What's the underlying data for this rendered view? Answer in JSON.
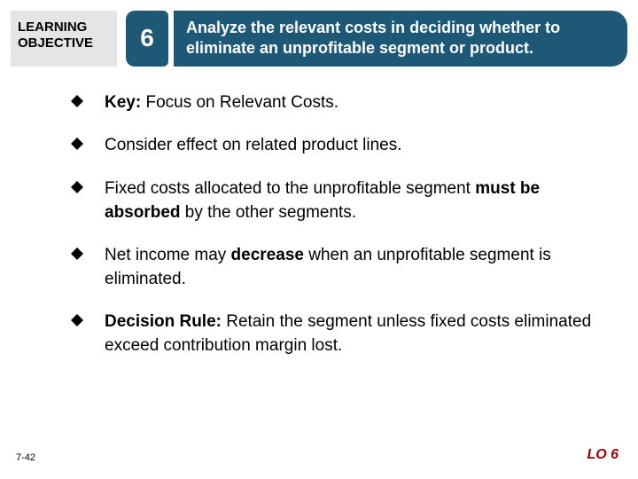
{
  "header": {
    "label_line1": "LEARNING",
    "label_line2": "OBJECTIVE",
    "number": "6",
    "objective": "Analyze the relevant costs in deciding whether to eliminate an unprofitable segment or product."
  },
  "bullets": [
    {
      "lead": "Key:",
      "lead_bold": true,
      "text": "  Focus on Relevant Costs."
    },
    {
      "lead": "",
      "lead_bold": false,
      "text": "Consider effect on related product lines."
    },
    {
      "lead": "",
      "lead_bold": false,
      "text": "Fixed costs allocated to the unprofitable segment ",
      "bold_mid": "must be absorbed",
      "tail": " by the other segments."
    },
    {
      "lead": "",
      "lead_bold": false,
      "text": "Net income may ",
      "bold_mid": "decrease",
      "tail": " when an unprofitable segment is eliminated."
    },
    {
      "lead": "Decision Rule:",
      "lead_bold": true,
      "text": "  Retain the segment unless fixed costs eliminated exceed contribution margin lost."
    }
  ],
  "footer": {
    "page": "7-42",
    "lo": "LO 6"
  },
  "colors": {
    "header_bg": "#1d5876",
    "label_bg": "#e5e5e5",
    "lo_color": "#a00000",
    "bullet_marker": "#000000"
  }
}
